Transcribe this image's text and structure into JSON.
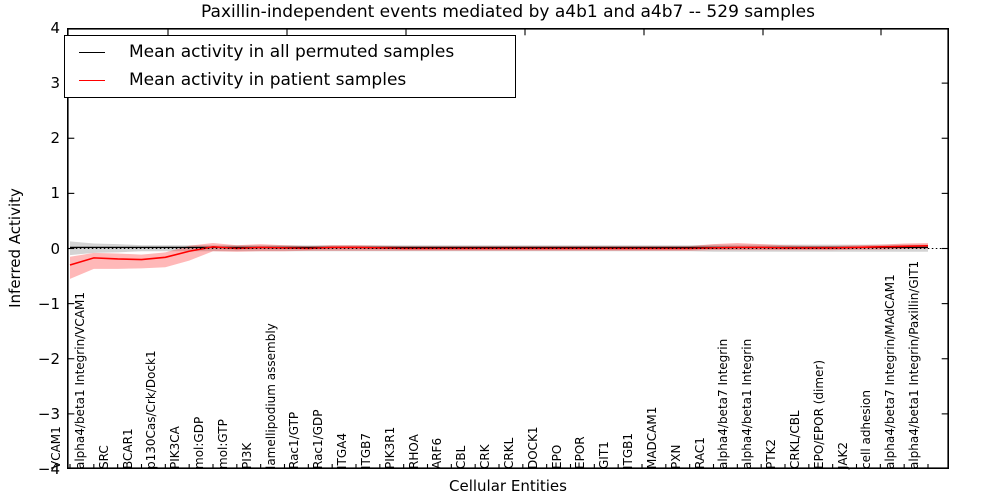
{
  "figure": {
    "title": "Paxillin-independent events mediated by a4b1 and a4b7 -- 529 samples",
    "xlabel": "Cellular Entities",
    "ylabel": "Inferred Activity",
    "legend": [
      {
        "label": "Mean activity in all permuted samples",
        "color": "#000000"
      },
      {
        "label": "Mean activity in patient samples",
        "color": "#ff0000"
      }
    ]
  },
  "chart_data": {
    "type": "line",
    "title": "Paxillin-independent events mediated by a4b1 and a4b7 -- 529 samples",
    "xlabel": "Cellular Entities",
    "ylabel": "Inferred Activity",
    "ylim": [
      -4,
      4
    ],
    "yticks": [
      4,
      3,
      2,
      1,
      0,
      -1,
      -2,
      -3,
      -4
    ],
    "grid": false,
    "legend_position": "upper left",
    "zero_reference_line": 0,
    "categories": [
      "VCAM1",
      "alpha4/beta1 Integrin/VCAM1",
      "SRC",
      "BCAR1",
      "p130Cas/Crk/Dock1",
      "PIK3CA",
      "mol:GDP",
      "mol:GTP",
      "PI3K",
      "lamellipodium assembly",
      "Rac1/GTP",
      "Rac1/GDP",
      "ITGA4",
      "ITGB7",
      "PIK3R1",
      "RHOA",
      "ARF6",
      "CBL",
      "CRK",
      "CRKL",
      "DOCK1",
      "EPO",
      "EPOR",
      "GIT1",
      "ITGB1",
      "MADCAM1",
      "PXN",
      "RAC1",
      "alpha4/beta7 Integrin",
      "alpha4/beta1 Integrin",
      "PTK2",
      "CRKL/CBL",
      "EPO/EPOR (dimer)",
      "JAK2",
      "cell adhesion",
      "alpha4/beta7 Integrin/MAdCAM1",
      "alpha4/beta1 Integrin/Paxillin/GIT1"
    ],
    "series": [
      {
        "name": "Mean activity in all permuted samples",
        "color": "#000000",
        "band_color": "rgba(0,0,0,0.17)",
        "values": [
          0.02,
          0.02,
          0.02,
          0.02,
          0.02,
          0.02,
          0.02,
          0.02,
          0.02,
          0.02,
          0.02,
          0.02,
          0.02,
          0.02,
          0.02,
          0.02,
          0.02,
          0.02,
          0.02,
          0.02,
          0.02,
          0.02,
          0.02,
          0.02,
          0.02,
          0.02,
          0.02,
          0.02,
          0.02,
          0.02,
          0.02,
          0.02,
          0.02,
          0.02,
          0.02,
          0.02,
          0.02
        ],
        "band_low": [
          -0.12,
          -0.08,
          -0.07,
          -0.05,
          -0.05,
          -0.05,
          -0.05,
          -0.05,
          -0.05,
          -0.05,
          -0.05,
          -0.05,
          -0.05,
          -0.05,
          -0.05,
          -0.05,
          -0.05,
          -0.05,
          -0.05,
          -0.05,
          -0.05,
          -0.05,
          -0.05,
          -0.05,
          -0.05,
          -0.05,
          -0.05,
          -0.06,
          -0.06,
          -0.06,
          -0.06,
          -0.06,
          -0.06,
          -0.06,
          -0.06,
          -0.06,
          -0.06
        ],
        "band_high": [
          0.13,
          0.09,
          0.08,
          0.06,
          0.06,
          0.06,
          0.06,
          0.06,
          0.06,
          0.06,
          0.06,
          0.06,
          0.06,
          0.06,
          0.06,
          0.06,
          0.06,
          0.06,
          0.06,
          0.06,
          0.06,
          0.06,
          0.06,
          0.06,
          0.06,
          0.06,
          0.06,
          0.07,
          0.07,
          0.07,
          0.07,
          0.07,
          0.07,
          0.07,
          0.07,
          0.07,
          0.07
        ]
      },
      {
        "name": "Mean activity in patient samples",
        "color": "#ff0000",
        "band_color": "rgba(255,0,0,0.28)",
        "values": [
          -0.3,
          -0.17,
          -0.19,
          -0.2,
          -0.16,
          -0.05,
          0.03,
          0.0,
          0.02,
          0.01,
          0.0,
          0.02,
          0.02,
          0.01,
          0.0,
          0.0,
          0.0,
          0.0,
          0.0,
          0.0,
          0.0,
          0.0,
          0.0,
          0.0,
          0.0,
          0.0,
          0.0,
          0.01,
          0.02,
          0.02,
          0.01,
          0.01,
          0.01,
          0.02,
          0.03,
          0.04,
          0.05
        ],
        "band_low": [
          -0.55,
          -0.37,
          -0.37,
          -0.36,
          -0.34,
          -0.22,
          -0.05,
          -0.06,
          -0.05,
          -0.05,
          -0.04,
          -0.04,
          -0.04,
          -0.04,
          -0.04,
          -0.04,
          -0.04,
          -0.04,
          -0.04,
          -0.04,
          -0.04,
          -0.04,
          -0.04,
          -0.04,
          -0.04,
          -0.04,
          -0.04,
          -0.03,
          -0.03,
          -0.03,
          -0.03,
          -0.03,
          -0.03,
          -0.02,
          -0.02,
          -0.01,
          0.0
        ],
        "band_high": [
          -0.15,
          -0.08,
          -0.09,
          -0.11,
          -0.07,
          0.05,
          0.1,
          0.06,
          0.08,
          0.06,
          0.04,
          0.06,
          0.06,
          0.05,
          0.04,
          0.04,
          0.04,
          0.04,
          0.04,
          0.04,
          0.04,
          0.04,
          0.04,
          0.04,
          0.04,
          0.04,
          0.04,
          0.08,
          0.1,
          0.08,
          0.06,
          0.05,
          0.05,
          0.06,
          0.07,
          0.09,
          0.1
        ]
      }
    ]
  }
}
